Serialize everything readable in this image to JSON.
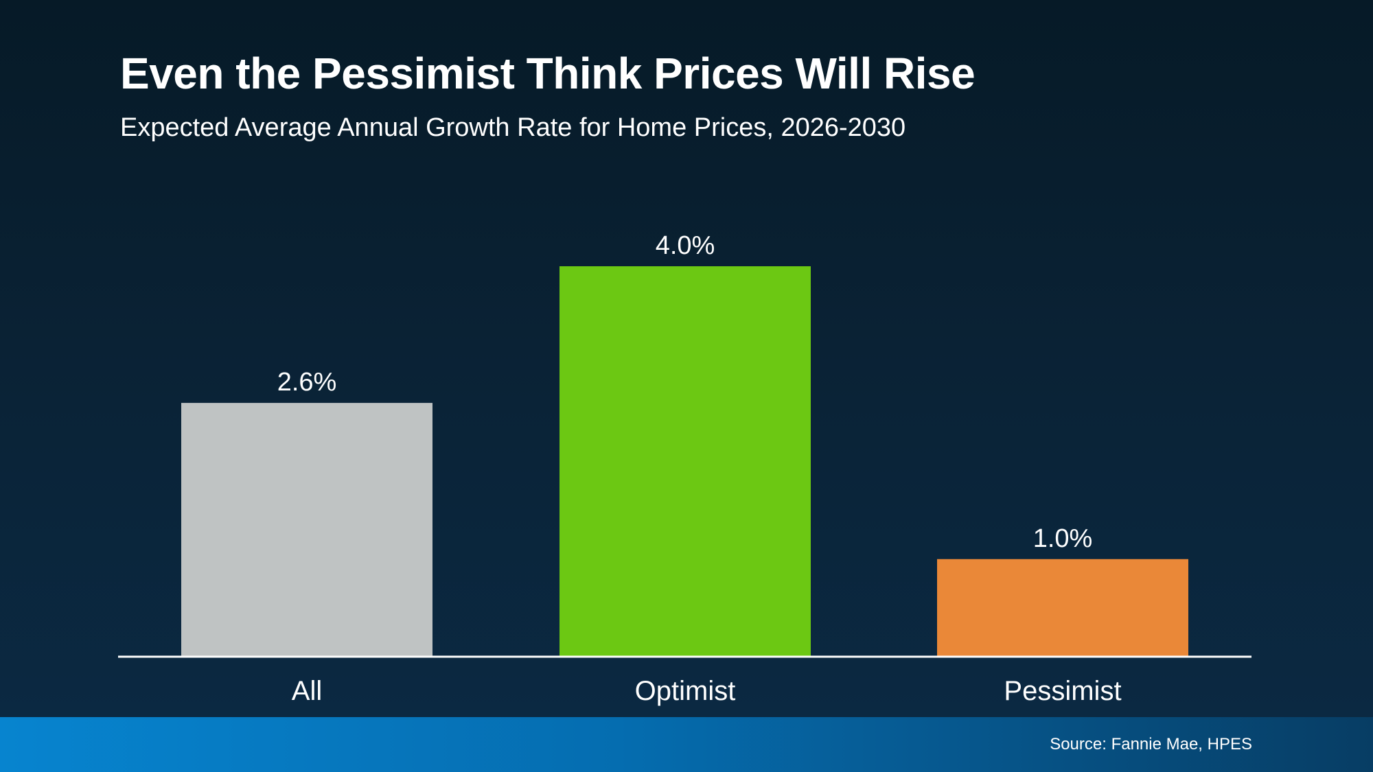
{
  "chart_data": {
    "type": "bar",
    "title": "Even the Pessimist Think Prices Will Rise",
    "subtitle": "Expected Average Annual Growth Rate for Home Prices, 2026-2030",
    "categories": [
      "All",
      "Optimist",
      "Pessimist"
    ],
    "values": [
      2.6,
      4.0,
      1.0
    ],
    "value_labels": [
      "2.6%",
      "4.0%",
      "1.0%"
    ],
    "colors": [
      "#bfc3c3",
      "#6cc813",
      "#ea8838"
    ],
    "xlabel": "",
    "ylabel": "",
    "ylim": [
      0,
      4.0
    ],
    "grid": false,
    "legend": "none"
  },
  "footer": {
    "source": "Source: Fannie Mae, HPES"
  }
}
